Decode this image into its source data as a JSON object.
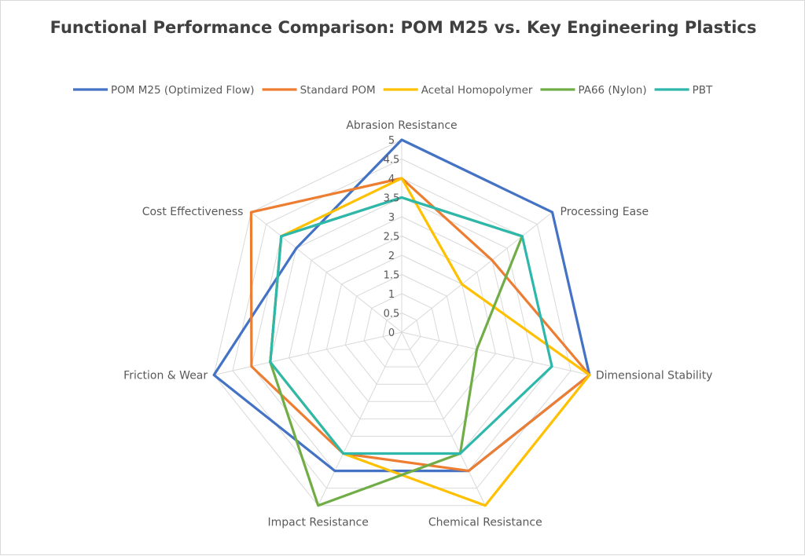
{
  "chart_data": {
    "type": "radar",
    "title": "Functional Performance Comparison: POM M25 vs. Key Engineering Plastics",
    "categories": [
      "Abrasion Resistance",
      "Processing Ease",
      "Dimensional Stability",
      "Chemical Resistance",
      "Impact Resistance",
      "Friction & Wear",
      "Cost Effectiveness"
    ],
    "rlim": [
      0,
      5
    ],
    "ticks": [
      "0",
      "0.5",
      "1",
      "1.5",
      "2",
      "2.5",
      "3",
      "3.5",
      "4",
      "4.5",
      "5"
    ],
    "grid": true,
    "legend_position": "top",
    "series": [
      {
        "name": "POM M25 (Optimized Flow)",
        "color": "#4472C4",
        "values": [
          5,
          5,
          5,
          4,
          4,
          5,
          3.5
        ]
      },
      {
        "name": "Standard POM",
        "color": "#ED7D31",
        "values": [
          4,
          3,
          5,
          4,
          3.5,
          4,
          5
        ]
      },
      {
        "name": "Acetal Homopolymer",
        "color": "#FFC000",
        "values": [
          4,
          2,
          5,
          5,
          3.5,
          3.5,
          4
        ]
      },
      {
        "name": "PA66 (Nylon)",
        "color": "#70AD47",
        "values": [
          3.5,
          4,
          2,
          3.5,
          5,
          3.5,
          4
        ]
      },
      {
        "name": "PBT",
        "color": "#2EB8AC",
        "values": [
          3.5,
          4,
          4,
          3.5,
          3.5,
          3.5,
          4
        ]
      }
    ]
  }
}
